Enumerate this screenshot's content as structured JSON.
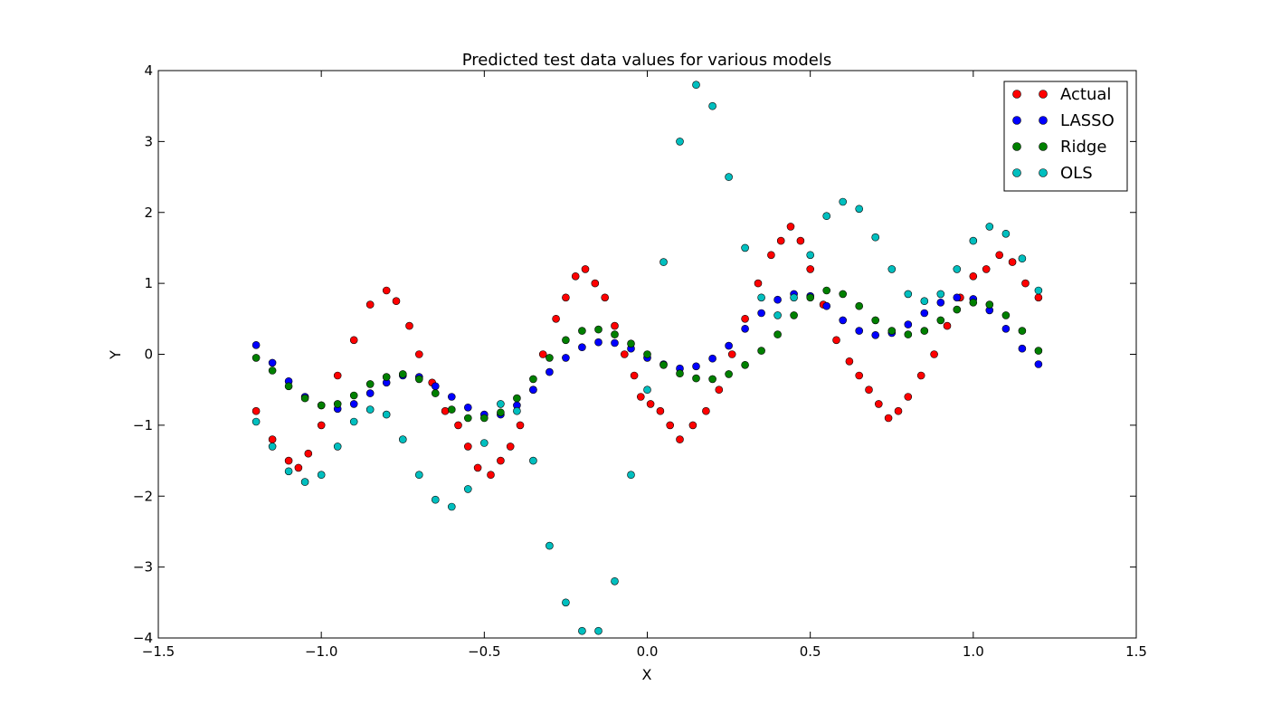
{
  "chart_data": {
    "type": "scatter",
    "title": "Predicted test data values for various models",
    "xlabel": "X",
    "ylabel": "Y",
    "xlim": [
      -1.5,
      1.5
    ],
    "ylim": [
      -4,
      4
    ],
    "xticks": [
      -1.5,
      -1.0,
      -0.5,
      0.0,
      0.5,
      1.0,
      1.5
    ],
    "yticks": [
      -4,
      -3,
      -2,
      -1,
      0,
      1,
      2,
      3,
      4
    ],
    "xtick_labels": [
      "−1.5",
      "−1.0",
      "−0.5",
      "0.0",
      "0.5",
      "1.0",
      "1.5"
    ],
    "ytick_labels": [
      "−4",
      "−3",
      "−2",
      "−1",
      "0",
      "1",
      "2",
      "3",
      "4"
    ],
    "grid": false,
    "legend_position": "top-right",
    "series": [
      {
        "name": "Actual",
        "color": "#ff0000",
        "x": [
          -1.2,
          -1.15,
          -1.1,
          -1.07,
          -1.04,
          -1.0,
          -0.95,
          -0.9,
          -0.85,
          -0.8,
          -0.77,
          -0.73,
          -0.7,
          -0.66,
          -0.62,
          -0.58,
          -0.55,
          -0.52,
          -0.48,
          -0.45,
          -0.42,
          -0.39,
          -0.35,
          -0.32,
          -0.28,
          -0.25,
          -0.22,
          -0.19,
          -0.16,
          -0.13,
          -0.1,
          -0.07,
          -0.04,
          -0.02,
          0.01,
          0.04,
          0.07,
          0.1,
          0.14,
          0.18,
          0.22,
          0.26,
          0.3,
          0.34,
          0.38,
          0.41,
          0.44,
          0.47,
          0.5,
          0.54,
          0.58,
          0.62,
          0.65,
          0.68,
          0.71,
          0.74,
          0.77,
          0.8,
          0.84,
          0.88,
          0.92,
          0.96,
          1.0,
          1.04,
          1.08,
          1.12,
          1.16,
          1.2
        ],
        "y": [
          -0.8,
          -1.2,
          -1.5,
          -1.6,
          -1.4,
          -1.0,
          -0.3,
          0.2,
          0.7,
          0.9,
          0.75,
          0.4,
          0.0,
          -0.4,
          -0.8,
          -1.0,
          -1.3,
          -1.6,
          -1.7,
          -1.5,
          -1.3,
          -1.0,
          -0.5,
          0.0,
          0.5,
          0.8,
          1.1,
          1.2,
          1.0,
          0.8,
          0.4,
          0.0,
          -0.3,
          -0.6,
          -0.7,
          -0.8,
          -1.0,
          -1.2,
          -1.0,
          -0.8,
          -0.5,
          0.0,
          0.5,
          1.0,
          1.4,
          1.6,
          1.8,
          1.6,
          1.2,
          0.7,
          0.2,
          -0.1,
          -0.3,
          -0.5,
          -0.7,
          -0.9,
          -0.8,
          -0.6,
          -0.3,
          0.0,
          0.4,
          0.8,
          1.1,
          1.2,
          1.4,
          1.3,
          1.0,
          0.8
        ]
      },
      {
        "name": "LASSO",
        "color": "#0000ff",
        "x": [
          -1.2,
          -1.15,
          -1.1,
          -1.05,
          -1.0,
          -0.95,
          -0.9,
          -0.85,
          -0.8,
          -0.75,
          -0.7,
          -0.65,
          -0.6,
          -0.55,
          -0.5,
          -0.45,
          -0.4,
          -0.35,
          -0.3,
          -0.25,
          -0.2,
          -0.15,
          -0.1,
          -0.05,
          0.0,
          0.05,
          0.1,
          0.15,
          0.2,
          0.25,
          0.3,
          0.35,
          0.4,
          0.45,
          0.5,
          0.55,
          0.6,
          0.65,
          0.7,
          0.75,
          0.8,
          0.85,
          0.9,
          0.95,
          1.0,
          1.05,
          1.1,
          1.15,
          1.2
        ],
        "y": [
          0.13,
          -0.12,
          -0.38,
          -0.6,
          -0.72,
          -0.77,
          -0.7,
          -0.55,
          -0.4,
          -0.3,
          -0.32,
          -0.45,
          -0.6,
          -0.75,
          -0.85,
          -0.85,
          -0.72,
          -0.5,
          -0.25,
          -0.05,
          0.1,
          0.17,
          0.16,
          0.08,
          -0.05,
          -0.14,
          -0.2,
          -0.17,
          -0.06,
          0.12,
          0.36,
          0.58,
          0.77,
          0.85,
          0.82,
          0.68,
          0.48,
          0.33,
          0.27,
          0.3,
          0.42,
          0.58,
          0.73,
          0.8,
          0.78,
          0.62,
          0.36,
          0.08,
          -0.14
        ]
      },
      {
        "name": "Ridge",
        "color": "#008000",
        "x": [
          -1.2,
          -1.15,
          -1.1,
          -1.05,
          -1.0,
          -0.95,
          -0.9,
          -0.85,
          -0.8,
          -0.75,
          -0.7,
          -0.65,
          -0.6,
          -0.55,
          -0.5,
          -0.45,
          -0.4,
          -0.35,
          -0.3,
          -0.25,
          -0.2,
          -0.15,
          -0.1,
          -0.05,
          0.0,
          0.05,
          0.1,
          0.15,
          0.2,
          0.25,
          0.3,
          0.35,
          0.4,
          0.45,
          0.5,
          0.55,
          0.6,
          0.65,
          0.7,
          0.75,
          0.8,
          0.85,
          0.9,
          0.95,
          1.0,
          1.05,
          1.1,
          1.15,
          1.2
        ],
        "y": [
          -0.05,
          -0.23,
          -0.45,
          -0.62,
          -0.72,
          -0.7,
          -0.58,
          -0.42,
          -0.32,
          -0.28,
          -0.35,
          -0.55,
          -0.78,
          -0.9,
          -0.9,
          -0.82,
          -0.62,
          -0.35,
          -0.05,
          0.2,
          0.33,
          0.35,
          0.28,
          0.15,
          0.0,
          -0.15,
          -0.27,
          -0.34,
          -0.35,
          -0.28,
          -0.15,
          0.05,
          0.28,
          0.55,
          0.8,
          0.9,
          0.85,
          0.68,
          0.48,
          0.33,
          0.28,
          0.33,
          0.48,
          0.63,
          0.73,
          0.7,
          0.55,
          0.33,
          0.05
        ]
      },
      {
        "name": "OLS",
        "color": "#00bfbf",
        "x": [
          -1.2,
          -1.15,
          -1.1,
          -1.05,
          -1.0,
          -0.95,
          -0.9,
          -0.85,
          -0.8,
          -0.75,
          -0.7,
          -0.65,
          -0.6,
          -0.55,
          -0.5,
          -0.45,
          -0.4,
          -0.35,
          -0.3,
          -0.25,
          -0.2,
          -0.15,
          -0.1,
          -0.05,
          0.0,
          0.05,
          0.1,
          0.15,
          0.2,
          0.25,
          0.3,
          0.35,
          0.4,
          0.45,
          0.5,
          0.55,
          0.6,
          0.65,
          0.7,
          0.75,
          0.8,
          0.85,
          0.9,
          0.95,
          1.0,
          1.05,
          1.1,
          1.15,
          1.2
        ],
        "y": [
          -0.95,
          -1.3,
          -1.65,
          -1.8,
          -1.7,
          -1.3,
          -0.95,
          -0.78,
          -0.85,
          -1.2,
          -1.7,
          -2.05,
          -2.15,
          -1.9,
          -1.25,
          -0.7,
          -0.8,
          -1.5,
          -2.7,
          -3.5,
          -3.9,
          -3.9,
          -3.2,
          -1.7,
          -0.5,
          1.3,
          3.0,
          3.8,
          3.5,
          2.5,
          1.5,
          0.8,
          0.55,
          0.8,
          1.4,
          1.95,
          2.15,
          2.05,
          1.65,
          1.2,
          0.85,
          0.75,
          0.85,
          1.2,
          1.6,
          1.8,
          1.7,
          1.35,
          0.9
        ]
      }
    ]
  }
}
